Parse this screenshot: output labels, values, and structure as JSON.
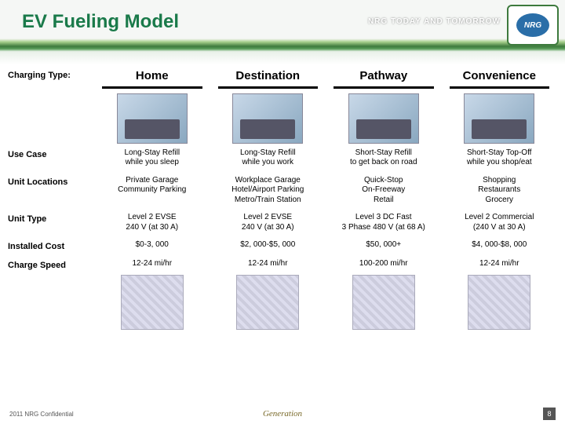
{
  "header": {
    "title": "EV Fueling Model",
    "tagline": "NRG TODAY AND TOMORROW",
    "logo_text": "NRG"
  },
  "row_labels": {
    "charging_type": "Charging Type:",
    "use_case": "Use Case",
    "unit_locations": "Unit Locations",
    "unit_type": "Unit Type",
    "installed_cost": "Installed Cost",
    "charge_speed": "Charge Speed"
  },
  "columns": [
    {
      "header": "Home",
      "use_case": "Long-Stay Refill\nwhile you sleep",
      "unit_locations": "Private Garage\nCommunity Parking",
      "unit_type": "Level 2 EVSE\n240 V (at 30 A)",
      "installed_cost": "$0-3, 000",
      "charge_speed": "12-24 mi/hr"
    },
    {
      "header": "Destination",
      "use_case": "Long-Stay Refill\nwhile you work",
      "unit_locations": "Workplace Garage\nHotel/Airport Parking\nMetro/Train Station",
      "unit_type": "Level 2 EVSE\n240 V (at 30 A)",
      "installed_cost": "$2, 000-$5, 000",
      "charge_speed": "12-24 mi/hr"
    },
    {
      "header": "Pathway",
      "use_case": "Short-Stay Refill\nto get back on road",
      "unit_locations": "Quick-Stop\nOn-Freeway\nRetail",
      "unit_type": "Level 3 DC Fast\n3 Phase 480 V (at 68 A)",
      "installed_cost": "$50, 000+",
      "charge_speed": "100-200 mi/hr"
    },
    {
      "header": "Convenience",
      "use_case": "Short-Stay Top-Off\nwhile you shop/eat",
      "unit_locations": "Shopping\nRestaurants\nGrocery",
      "unit_type": "Level 2 Commercial\n(240 V at 30 A)",
      "installed_cost": "$4, 000-$8, 000",
      "charge_speed": "12-24 mi/hr"
    }
  ],
  "footer": {
    "left": "2011 NRG Confidential",
    "center": "Generation",
    "page": "8"
  },
  "colors": {
    "title": "#1a7a4a",
    "text": "#000000",
    "background": "#ffffff"
  }
}
